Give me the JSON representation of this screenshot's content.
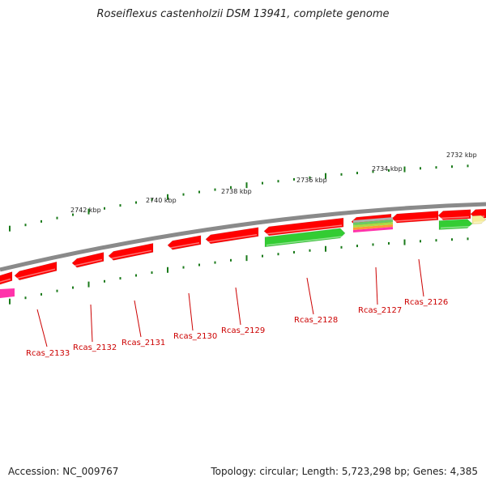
{
  "title": "Roseiflexus castenholzii DSM 13941, complete genome",
  "footer": {
    "accession": "Accession: NC_009767",
    "topology": "Topology: circular; Length: 5,723,298 bp; Genes: 4,385"
  },
  "colors": {
    "backbone": "#8a8a8a",
    "cds_red": "#ff0000",
    "cds_green": "#33cc33",
    "cds_magenta": "#ff33aa",
    "cds_yellow": "#f5ec9a",
    "ticks": "#1a7a1a",
    "label_red": "#cc0000"
  },
  "diagram": {
    "kbp_labels": [
      "2742 kbp",
      "2740 kbp",
      "2738 kbp",
      "2736 kbp",
      "2734 kbp",
      "2732 kbp"
    ],
    "gene_labels": [
      "Rcas_2133",
      "Rcas_2132",
      "Rcas_2131",
      "Rcas_2130",
      "Rcas_2129",
      "Rcas_2128",
      "Rcas_2127",
      "Rcas_2126"
    ]
  }
}
